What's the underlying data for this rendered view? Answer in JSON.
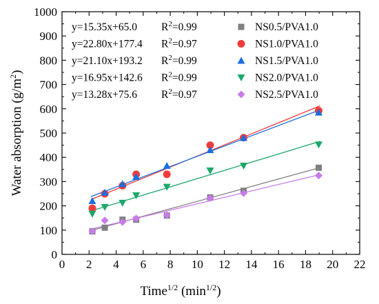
{
  "chart_data": {
    "type": "scatter",
    "xlabel": "Time",
    "xlabel_sup": "1/2",
    "xlabel_unit_pre": " (min",
    "xlabel_unit_sup": "1/2",
    "xlabel_unit_post": ")",
    "ylabel": "Water absorption (g/m",
    "ylabel_sup": "2",
    "ylabel_post": ")",
    "xlim": [
      0,
      22
    ],
    "ylim": [
      0,
      1000
    ],
    "xticks": [
      0,
      2,
      4,
      6,
      8,
      10,
      12,
      14,
      16,
      18,
      20,
      22
    ],
    "yticks": [
      0,
      100,
      200,
      300,
      400,
      500,
      600,
      700,
      800,
      900,
      1000
    ],
    "legend_position": "top-right",
    "series": [
      {
        "name": "NS0.5/PVA1.0",
        "marker": "square",
        "color": "#808080",
        "equation": "y=15.35x+65.0",
        "r2_label": "R",
        "r2_sup": "2",
        "r2_value": "=0.99",
        "fit": {
          "slope": 15.35,
          "intercept": 65.0
        },
        "points": [
          [
            2.24,
            95
          ],
          [
            3.16,
            110
          ],
          [
            4.47,
            143
          ],
          [
            5.48,
            143
          ],
          [
            7.75,
            160
          ],
          [
            10.95,
            235
          ],
          [
            13.42,
            262
          ],
          [
            18.97,
            357
          ]
        ]
      },
      {
        "name": "NS1.0/PVA1.0",
        "marker": "circle",
        "color": "#f03c3c",
        "equation": "y=22.80x+177.4",
        "r2_label": "R",
        "r2_sup": "2",
        "r2_value": "=0.97",
        "fit": {
          "slope": 22.8,
          "intercept": 177.4
        },
        "points": [
          [
            2.24,
            190
          ],
          [
            3.16,
            250
          ],
          [
            4.47,
            283
          ],
          [
            5.48,
            330
          ],
          [
            7.75,
            330
          ],
          [
            10.95,
            450
          ],
          [
            13.42,
            481
          ],
          [
            18.97,
            592
          ]
        ]
      },
      {
        "name": "NS1.5/PVA1.0",
        "marker": "triangle-up",
        "color": "#1a6fe0",
        "equation": "y=21.10x+193.2",
        "r2_label": "R",
        "r2_sup": "2",
        "r2_value": "=0.99",
        "fit": {
          "slope": 21.1,
          "intercept": 193.2
        },
        "points": [
          [
            2.24,
            220
          ],
          [
            3.16,
            255
          ],
          [
            4.47,
            290
          ],
          [
            5.48,
            320
          ],
          [
            7.75,
            365
          ],
          [
            10.95,
            430
          ],
          [
            13.42,
            480
          ],
          [
            18.97,
            585
          ]
        ]
      },
      {
        "name": "NS2.0/PVA1.0",
        "marker": "triangle-down",
        "color": "#1aa86a",
        "equation": "y=16.95x+142.6",
        "r2_label": "R",
        "r2_sup": "2",
        "r2_value": "=0.99",
        "fit": {
          "slope": 16.95,
          "intercept": 142.6
        },
        "points": [
          [
            2.24,
            167
          ],
          [
            3.16,
            195
          ],
          [
            4.47,
            212
          ],
          [
            5.48,
            243
          ],
          [
            7.75,
            278
          ],
          [
            10.95,
            345
          ],
          [
            13.42,
            365
          ],
          [
            18.97,
            452
          ]
        ]
      },
      {
        "name": "NS2.5/PVA1.0",
        "marker": "diamond",
        "color": "#c77ce8",
        "equation": "y=13.28x+75.6",
        "r2_label": "R",
        "r2_sup": "2",
        "r2_value": "=0.97",
        "fit": {
          "slope": 13.28,
          "intercept": 75.6
        },
        "points": [
          [
            2.24,
            95
          ],
          [
            3.16,
            140
          ],
          [
            4.47,
            133
          ],
          [
            5.48,
            148
          ],
          [
            7.75,
            162
          ],
          [
            10.95,
            232
          ],
          [
            13.42,
            252
          ],
          [
            18.97,
            325
          ]
        ]
      }
    ]
  }
}
